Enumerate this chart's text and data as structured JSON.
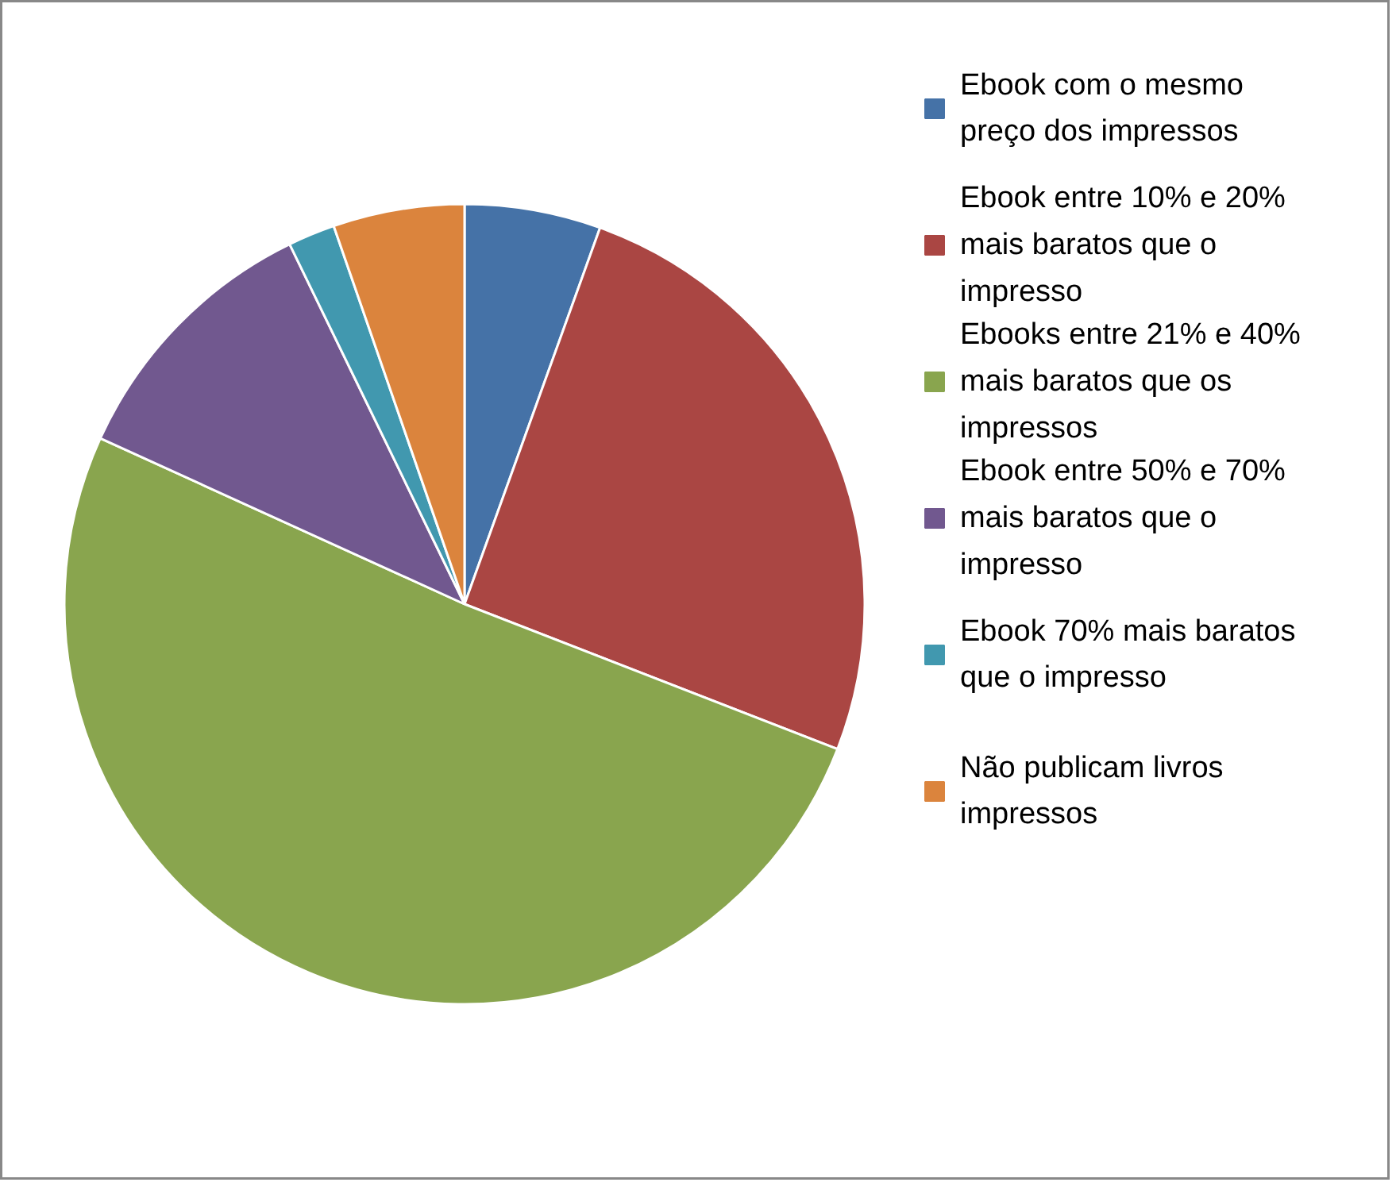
{
  "chart_data": {
    "type": "pie",
    "categories": [
      "Ebook com o mesmo preço dos impressos",
      "Ebook entre 10% e 20% mais baratos que o impresso",
      "Ebooks entre 21% e 40% mais baratos que os impressos",
      "Ebook entre 50% e 70% mais baratos que o impresso",
      "Ebook 70% mais baratos que o impresso",
      "Não publicam livros impressos"
    ],
    "values": [
      5.5,
      25.4,
      50.9,
      11,
      1.9,
      5.3
    ],
    "colors": [
      "#4572a7",
      "#aa4643",
      "#89a54e",
      "#71588f",
      "#4198af",
      "#db843d"
    ],
    "legend": "right"
  }
}
